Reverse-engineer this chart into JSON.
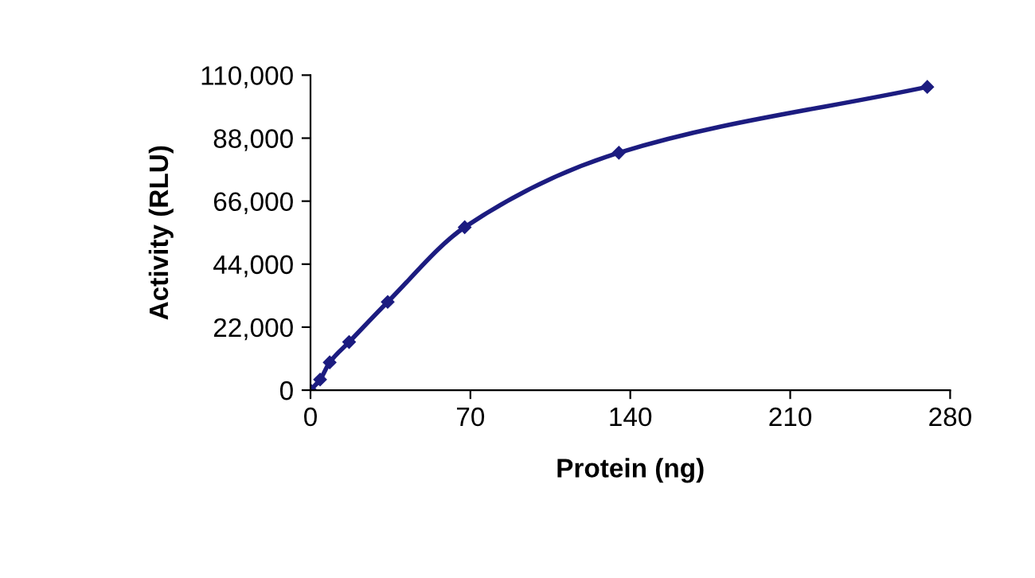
{
  "chart_data": {
    "type": "line",
    "xlabel": "Protein (ng)",
    "ylabel": "Activity (RLU)",
    "x": [
      0,
      4.2,
      8.4,
      16.9,
      33.8,
      67.5,
      135,
      270
    ],
    "series": [
      {
        "color": "#1c1c80",
        "values": [
          0,
          3700,
          9700,
          16800,
          30800,
          56900,
          82900,
          105900
        ]
      }
    ],
    "xlim": [
      0,
      280
    ],
    "xticks": [
      0,
      70,
      140,
      210,
      280
    ],
    "ylim": [
      0,
      110000
    ],
    "yticks": [
      {
        "value": 0,
        "label": "0"
      },
      {
        "value": 22000,
        "label": "22,000"
      },
      {
        "value": 44000,
        "label": "44,000"
      },
      {
        "value": 66000,
        "label": "66,000"
      },
      {
        "value": 88000,
        "label": "88,000"
      },
      {
        "value": 110000,
        "label": "110,000"
      }
    ],
    "marker": "diamond",
    "line_style": "solid",
    "grid": false,
    "legend": false
  }
}
